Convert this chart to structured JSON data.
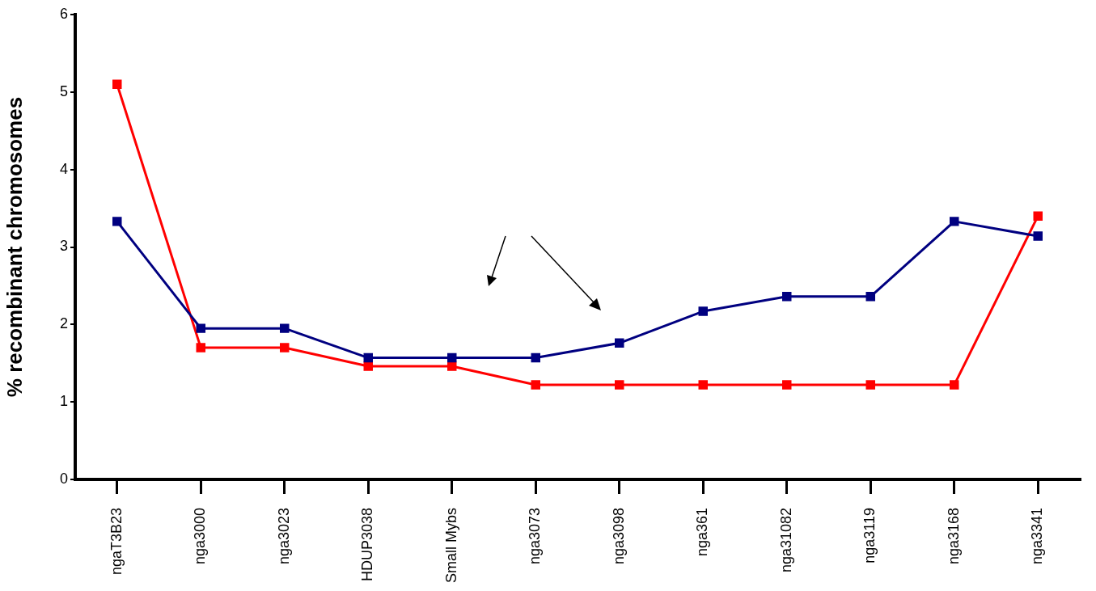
{
  "chart_data": {
    "type": "line",
    "ylabel": "% recombinant chromosomes",
    "categories": [
      "ngaT3B23",
      "nga3000",
      "nga3023",
      "HDUP3038",
      "Small Mybs",
      "nga3073",
      "nga3098",
      "nga361",
      "nga31082",
      "nga3119",
      "nga3168",
      "nga3341"
    ],
    "ylim": [
      0,
      6
    ],
    "yticks": [
      0,
      1,
      2,
      3,
      4,
      5,
      6
    ],
    "series": [
      {
        "color": "#000080",
        "values": [
          3.33,
          1.95,
          1.95,
          1.57,
          1.57,
          1.57,
          1.76,
          2.17,
          2.36,
          2.36,
          3.33,
          3.14
        ]
      },
      {
        "color": "#ff0000",
        "values": [
          5.1,
          1.7,
          1.7,
          1.46,
          1.46,
          1.22,
          1.22,
          1.22,
          1.22,
          1.22,
          1.22,
          3.4
        ]
      }
    ],
    "marker": "square",
    "line_style": "solid",
    "grid": false,
    "legend": false
  }
}
